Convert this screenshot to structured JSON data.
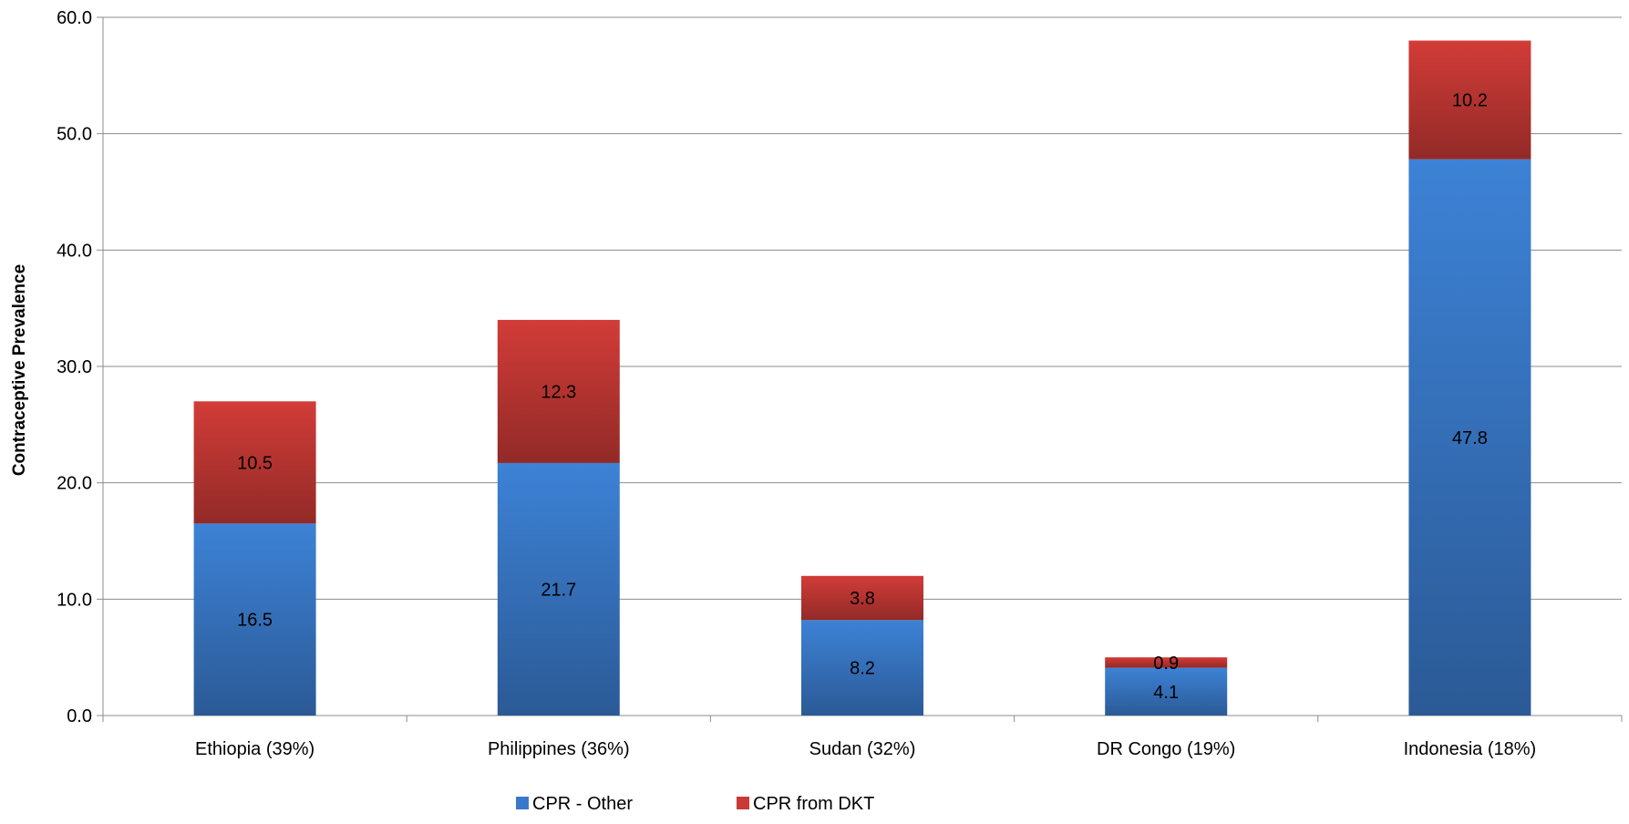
{
  "chart_data": {
    "type": "bar",
    "stacked": true,
    "categories": [
      "Ethiopia (39%)",
      "Philippines (36%)",
      "Sudan (32%)",
      "DR Congo (19%)",
      "Indonesia (18%)"
    ],
    "series": [
      {
        "name": "CPR - Other",
        "values": [
          16.5,
          21.7,
          8.2,
          4.1,
          47.8
        ],
        "color": "#3a78c9"
      },
      {
        "name": "CPR from DKT",
        "values": [
          10.5,
          12.3,
          3.8,
          0.9,
          10.2
        ],
        "color": "#c93a36"
      }
    ],
    "ylabel": "Contraceptive Prevalence",
    "xlabel": "",
    "title": "",
    "ylim": [
      0,
      60
    ],
    "yticks": [
      "0.0",
      "10.0",
      "20.0",
      "30.0",
      "40.0",
      "50.0",
      "60.0"
    ],
    "grid": true,
    "legend_position": "bottom"
  }
}
